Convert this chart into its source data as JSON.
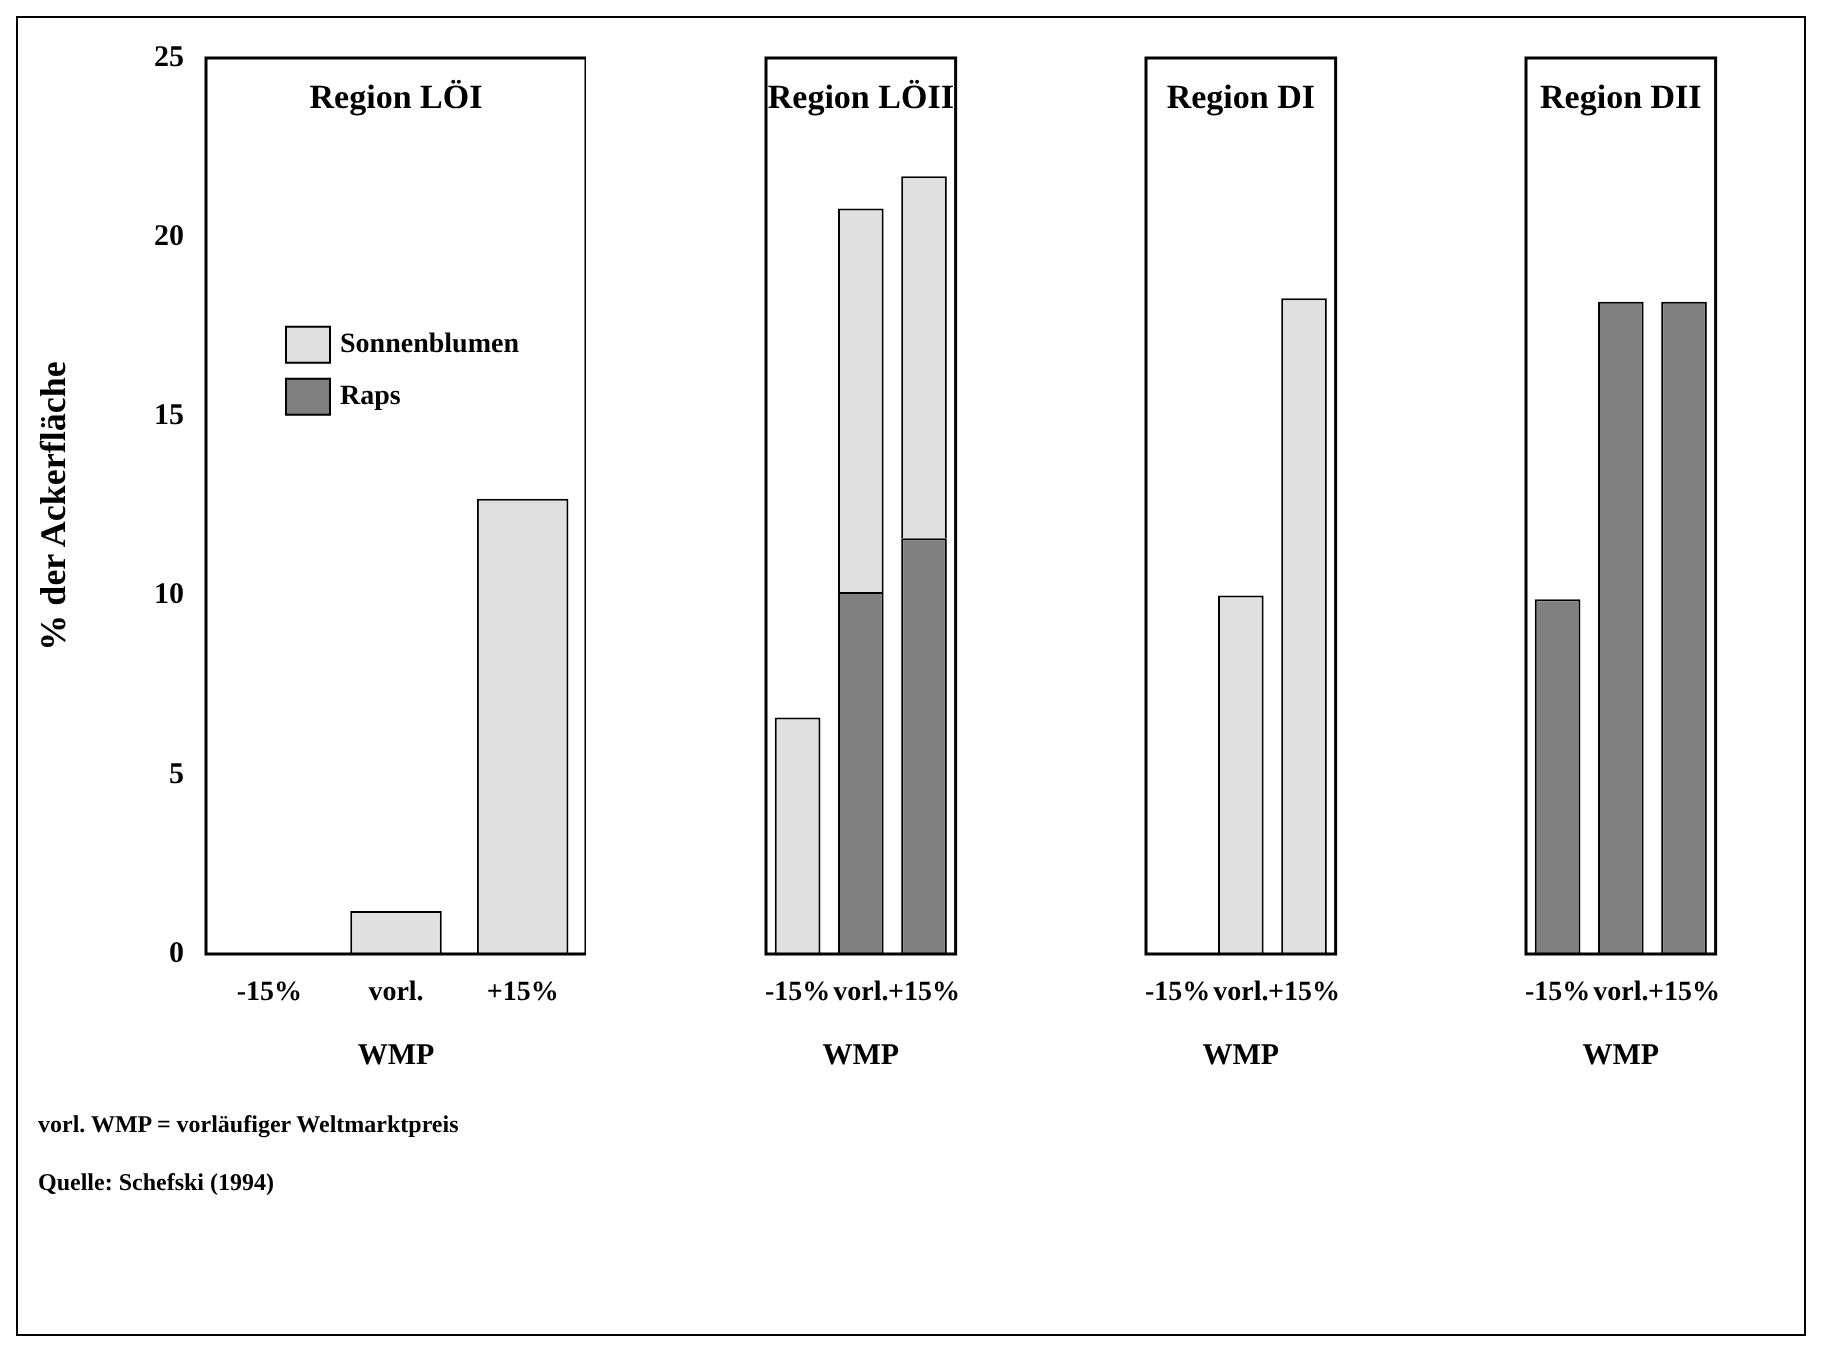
{
  "chart_data": [
    {
      "type": "bar",
      "title": "Region LÖI",
      "categories": [
        "-15%",
        "vorl.",
        "+15%"
      ],
      "xlabel": "WMP",
      "ylabel": "% der Ackerfläche",
      "stacked": true,
      "ylim": [
        0,
        25
      ],
      "yticks": [
        0,
        5,
        10,
        15,
        20,
        25
      ],
      "legend": "top left",
      "series": [
        {
          "name": "Raps",
          "color": "#808080",
          "values": [
            null,
            null,
            null
          ]
        },
        {
          "name": "Sonnenblumen",
          "color": "#e0e0e0",
          "values": [
            null,
            1.2,
            12.7
          ]
        }
      ],
      "annotations": [
        "vorl. WMP = vorläufiger Weltmarktpreis",
        "Quelle: Schefski (1994)"
      ]
    },
    {
      "type": "bar",
      "title": "Region LÖII",
      "categories": [
        "-15%",
        "vorl.",
        "+15%"
      ],
      "xlabel": "WMP",
      "stacked": true,
      "ylim": [
        0,
        25
      ],
      "tick_labels": "x",
      "series": [
        {
          "color": "#808080",
          "values": [
            null,
            10.1,
            11.6
          ]
        },
        {
          "color": "#e0e0e0",
          "values": [
            6.6,
            10.7,
            10.1
          ]
        }
      ]
    },
    {
      "type": "bar",
      "title": "Region DI",
      "categories": [
        "-15%",
        "vorl.",
        "+15%"
      ],
      "xlabel": "WMP",
      "stacked": true,
      "ylim": [
        0,
        25
      ],
      "tick_labels": "x",
      "series": [
        {
          "color": "#808080",
          "values": [
            null,
            null,
            null
          ]
        },
        {
          "color": "#e0e0e0",
          "values": [
            null,
            10.0,
            18.3
          ]
        }
      ]
    },
    {
      "type": "bar",
      "title": "Region DII",
      "categories": [
        "-15%",
        "vorl.",
        "+15%"
      ],
      "xlabel": "WMP",
      "stacked": true,
      "ylim": [
        0,
        25
      ],
      "tick_labels": "x",
      "series": [
        {
          "color": "#808080",
          "values": [
            9.9,
            18.2,
            18.2
          ]
        },
        {
          "color": "#e0e0e0",
          "values": [
            null,
            null,
            null
          ]
        }
      ]
    }
  ]
}
